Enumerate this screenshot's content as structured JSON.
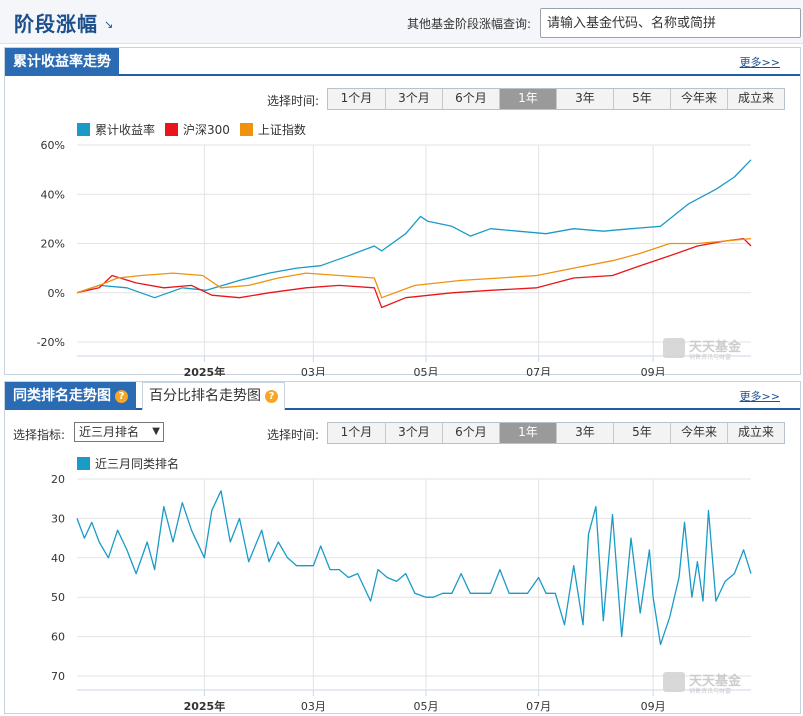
{
  "header": {
    "title": "阶段涨幅",
    "title_arrow": "↘",
    "search_label": "其他基金阶段涨幅查询:",
    "search_placeholder": "请输入基金代码、名称或简拼"
  },
  "return_section": {
    "tab_label": "累计收益率走势",
    "more_label": "更多>>",
    "time_label": "选择时间:",
    "ranges": [
      "1个月",
      "3个月",
      "6个月",
      "1年",
      "3年",
      "5年",
      "今年来",
      "成立来"
    ],
    "active_range": "1年",
    "watermark": "天天基金",
    "watermark_sub": "销售资讯与财富"
  },
  "rank_section": {
    "tab_label": "同类排名走势图",
    "tab2_label": "百分比排名走势图",
    "more_label": "更多>>",
    "indicator_label": "选择指标:",
    "indicator_value": "近三月排名",
    "time_label": "选择时间:",
    "ranges": [
      "1个月",
      "3个月",
      "6个月",
      "1年",
      "3年",
      "5年",
      "今年来",
      "成立来"
    ],
    "active_range": "1年",
    "watermark": "天天基金",
    "watermark_sub": "销售资讯与财富"
  },
  "chart_data": [
    {
      "type": "line",
      "x_ticks": [
        {
          "label": "2025年",
          "date": "2025-01-01",
          "bold": true
        },
        {
          "label": "03月",
          "date": "2025-03-01",
          "bold": false
        },
        {
          "label": "05月",
          "date": "2025-05-01",
          "bold": false
        },
        {
          "label": "07月",
          "date": "2025-07-01",
          "bold": false
        },
        {
          "label": "09月",
          "date": "2025-09-01",
          "bold": false
        }
      ],
      "x_range": [
        "2024-10-24",
        "2025-10-24"
      ],
      "ylim": [
        -20,
        60
      ],
      "y_ticks": [
        60,
        40,
        20,
        0,
        -20
      ],
      "y_tick_suffix": "%",
      "grid": true,
      "legend_position": "top-left",
      "series": [
        {
          "name": "累计收益率",
          "color": "#1a9bc7",
          "points": [
            [
              "2024-10-24",
              0
            ],
            [
              "2024-11-05",
              3
            ],
            [
              "2024-11-20",
              2
            ],
            [
              "2024-12-05",
              -2
            ],
            [
              "2024-12-20",
              2
            ],
            [
              "2025-01-02",
              1
            ],
            [
              "2025-01-20",
              5
            ],
            [
              "2025-02-05",
              8
            ],
            [
              "2025-02-20",
              10
            ],
            [
              "2025-03-05",
              11
            ],
            [
              "2025-03-20",
              15
            ],
            [
              "2025-04-03",
              19
            ],
            [
              "2025-04-07",
              17
            ],
            [
              "2025-04-20",
              24
            ],
            [
              "2025-04-28",
              31
            ],
            [
              "2025-05-02",
              29
            ],
            [
              "2025-05-15",
              27
            ],
            [
              "2025-05-25",
              23
            ],
            [
              "2025-06-05",
              26
            ],
            [
              "2025-06-20",
              25
            ],
            [
              "2025-07-05",
              24
            ],
            [
              "2025-07-20",
              26
            ],
            [
              "2025-08-05",
              25
            ],
            [
              "2025-08-20",
              26
            ],
            [
              "2025-09-05",
              27
            ],
            [
              "2025-09-20",
              36
            ],
            [
              "2025-10-05",
              42
            ],
            [
              "2025-10-15",
              47
            ],
            [
              "2025-10-24",
              54
            ]
          ]
        },
        {
          "name": "沪深300",
          "color": "#e8161a",
          "points": [
            [
              "2024-10-24",
              0
            ],
            [
              "2024-11-05",
              2
            ],
            [
              "2024-11-12",
              7
            ],
            [
              "2024-11-25",
              4
            ],
            [
              "2024-12-10",
              2
            ],
            [
              "2024-12-25",
              3
            ],
            [
              "2025-01-05",
              -1
            ],
            [
              "2025-01-20",
              -2
            ],
            [
              "2025-02-05",
              0
            ],
            [
              "2025-02-25",
              2
            ],
            [
              "2025-03-15",
              3
            ],
            [
              "2025-04-03",
              2
            ],
            [
              "2025-04-07",
              -6
            ],
            [
              "2025-04-20",
              -2
            ],
            [
              "2025-05-15",
              0
            ],
            [
              "2025-06-05",
              1
            ],
            [
              "2025-06-30",
              2
            ],
            [
              "2025-07-20",
              6
            ],
            [
              "2025-08-10",
              7
            ],
            [
              "2025-08-25",
              11
            ],
            [
              "2025-09-10",
              15
            ],
            [
              "2025-09-25",
              19
            ],
            [
              "2025-10-10",
              21
            ],
            [
              "2025-10-20",
              22
            ],
            [
              "2025-10-24",
              19
            ]
          ]
        },
        {
          "name": "上证指数",
          "color": "#f0920e",
          "points": [
            [
              "2024-10-24",
              0
            ],
            [
              "2024-11-05",
              3
            ],
            [
              "2024-11-15",
              6
            ],
            [
              "2024-11-28",
              7
            ],
            [
              "2024-12-15",
              8
            ],
            [
              "2024-12-31",
              7
            ],
            [
              "2025-01-10",
              2
            ],
            [
              "2025-01-25",
              3
            ],
            [
              "2025-02-10",
              6
            ],
            [
              "2025-02-25",
              8
            ],
            [
              "2025-03-15",
              7
            ],
            [
              "2025-04-03",
              6
            ],
            [
              "2025-04-07",
              -2
            ],
            [
              "2025-04-25",
              3
            ],
            [
              "2025-05-20",
              5
            ],
            [
              "2025-06-10",
              6
            ],
            [
              "2025-06-30",
              7
            ],
            [
              "2025-07-20",
              10
            ],
            [
              "2025-08-10",
              13
            ],
            [
              "2025-08-25",
              16
            ],
            [
              "2025-09-10",
              20
            ],
            [
              "2025-09-25",
              20
            ],
            [
              "2025-10-10",
              21
            ],
            [
              "2025-10-24",
              22
            ]
          ]
        }
      ]
    },
    {
      "type": "line",
      "x_ticks": [
        {
          "label": "2025年",
          "date": "2025-01-01",
          "bold": true
        },
        {
          "label": "03月",
          "date": "2025-03-01",
          "bold": false
        },
        {
          "label": "05月",
          "date": "2025-05-01",
          "bold": false
        },
        {
          "label": "07月",
          "date": "2025-07-01",
          "bold": false
        },
        {
          "label": "09月",
          "date": "2025-09-01",
          "bold": false
        }
      ],
      "x_range": [
        "2024-10-24",
        "2025-10-24"
      ],
      "ylim": [
        70,
        20
      ],
      "y_ticks": [
        20,
        30,
        40,
        50,
        60,
        70
      ],
      "y_tick_suffix": "",
      "grid": true,
      "legend_position": "top-left",
      "series": [
        {
          "name": "近三月同类排名",
          "color": "#1a9bc7",
          "points": [
            [
              "2024-10-24",
              30
            ],
            [
              "2024-10-28",
              35
            ],
            [
              "2024-11-01",
              31
            ],
            [
              "2024-11-05",
              36
            ],
            [
              "2024-11-10",
              40
            ],
            [
              "2024-11-15",
              33
            ],
            [
              "2024-11-20",
              38
            ],
            [
              "2024-11-25",
              44
            ],
            [
              "2024-12-01",
              36
            ],
            [
              "2024-12-05",
              43
            ],
            [
              "2024-12-10",
              27
            ],
            [
              "2024-12-15",
              36
            ],
            [
              "2024-12-20",
              26
            ],
            [
              "2024-12-25",
              33
            ],
            [
              "2025-01-01",
              40
            ],
            [
              "2025-01-05",
              28
            ],
            [
              "2025-01-10",
              23
            ],
            [
              "2025-01-15",
              36
            ],
            [
              "2025-01-20",
              30
            ],
            [
              "2025-01-25",
              41
            ],
            [
              "2025-02-01",
              33
            ],
            [
              "2025-02-05",
              41
            ],
            [
              "2025-02-10",
              36
            ],
            [
              "2025-02-15",
              40
            ],
            [
              "2025-02-20",
              42
            ],
            [
              "2025-03-01",
              42
            ],
            [
              "2025-03-05",
              37
            ],
            [
              "2025-03-10",
              43
            ],
            [
              "2025-03-15",
              43
            ],
            [
              "2025-03-20",
              45
            ],
            [
              "2025-03-25",
              44
            ],
            [
              "2025-04-01",
              51
            ],
            [
              "2025-04-05",
              43
            ],
            [
              "2025-04-10",
              45
            ],
            [
              "2025-04-15",
              46
            ],
            [
              "2025-04-20",
              44
            ],
            [
              "2025-04-25",
              49
            ],
            [
              "2025-05-01",
              50
            ],
            [
              "2025-05-05",
              50
            ],
            [
              "2025-05-10",
              49
            ],
            [
              "2025-05-15",
              49
            ],
            [
              "2025-05-20",
              44
            ],
            [
              "2025-05-25",
              49
            ],
            [
              "2025-06-01",
              49
            ],
            [
              "2025-06-05",
              49
            ],
            [
              "2025-06-10",
              43
            ],
            [
              "2025-06-15",
              49
            ],
            [
              "2025-06-20",
              49
            ],
            [
              "2025-06-25",
              49
            ],
            [
              "2025-07-01",
              45
            ],
            [
              "2025-07-05",
              49
            ],
            [
              "2025-07-10",
              49
            ],
            [
              "2025-07-15",
              57
            ],
            [
              "2025-07-20",
              42
            ],
            [
              "2025-07-25",
              57
            ],
            [
              "2025-07-28",
              34
            ],
            [
              "2025-08-01",
              27
            ],
            [
              "2025-08-05",
              56
            ],
            [
              "2025-08-10",
              29
            ],
            [
              "2025-08-15",
              60
            ],
            [
              "2025-08-20",
              35
            ],
            [
              "2025-08-25",
              54
            ],
            [
              "2025-08-30",
              38
            ],
            [
              "2025-09-01",
              50
            ],
            [
              "2025-09-05",
              62
            ],
            [
              "2025-09-10",
              55
            ],
            [
              "2025-09-15",
              45
            ],
            [
              "2025-09-18",
              31
            ],
            [
              "2025-09-22",
              50
            ],
            [
              "2025-09-25",
              41
            ],
            [
              "2025-09-28",
              51
            ],
            [
              "2025-10-01",
              28
            ],
            [
              "2025-10-05",
              51
            ],
            [
              "2025-10-10",
              46
            ],
            [
              "2025-10-15",
              44
            ],
            [
              "2025-10-20",
              38
            ],
            [
              "2025-10-24",
              44
            ]
          ]
        }
      ]
    }
  ]
}
